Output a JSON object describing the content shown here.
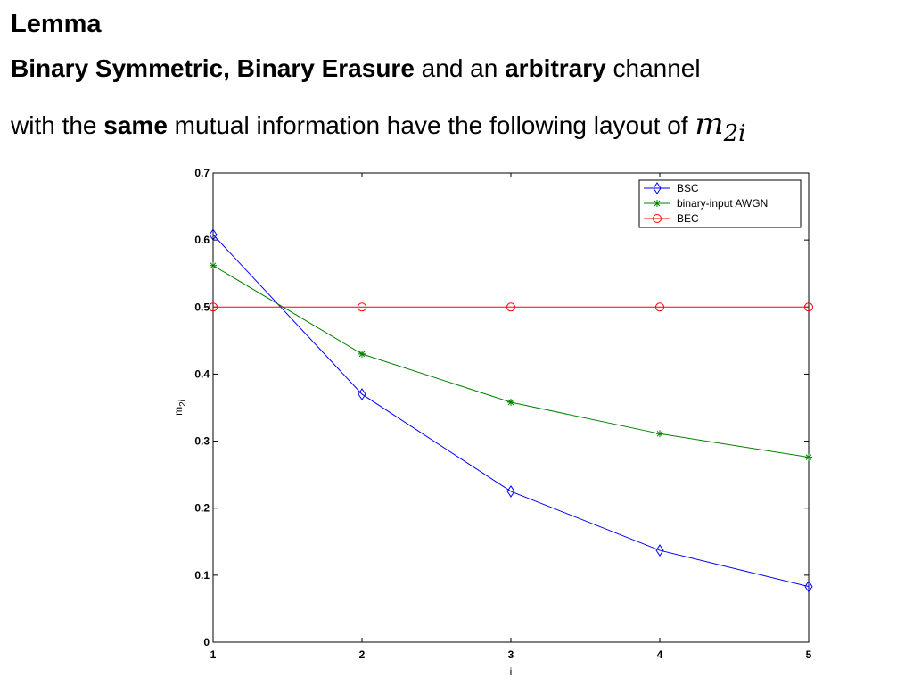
{
  "slide": {
    "heading": "Lemma",
    "line1": {
      "part1": "Binary Symmetric,",
      "part2": " ",
      "part3": "Binary Erasure",
      "part4": " and an ",
      "part5": "arbitrary",
      "part6": " channel"
    },
    "line2": {
      "part1": "with the ",
      "part2": "same",
      "part3": " mutual information have the following layout of ",
      "math_base": "m",
      "math_sub": "2i"
    }
  },
  "chart_data": {
    "type": "line",
    "x": [
      1,
      2,
      3,
      4,
      5
    ],
    "xlabel": "i",
    "ylabel_base": "m",
    "ylabel_sub": "2i",
    "xlim": [
      1,
      5
    ],
    "ylim": [
      0,
      0.7
    ],
    "xticks": [
      "1",
      "2",
      "3",
      "4",
      "5"
    ],
    "yticks": [
      "0",
      "0.1",
      "0.2",
      "0.3",
      "0.4",
      "0.5",
      "0.6",
      "0.7"
    ],
    "grid": false,
    "legend_position": "top-right",
    "series": [
      {
        "name": "BSC",
        "color": "#0000ff",
        "marker": "diamond",
        "values": [
          0.608,
          0.37,
          0.225,
          0.137,
          0.083
        ]
      },
      {
        "name": "binary-input AWGN",
        "color": "#008000",
        "marker": "star",
        "values": [
          0.562,
          0.43,
          0.358,
          0.311,
          0.276
        ]
      },
      {
        "name": "BEC",
        "color": "#ff0000",
        "marker": "circle",
        "values": [
          0.5,
          0.5,
          0.5,
          0.5,
          0.5
        ]
      }
    ]
  }
}
